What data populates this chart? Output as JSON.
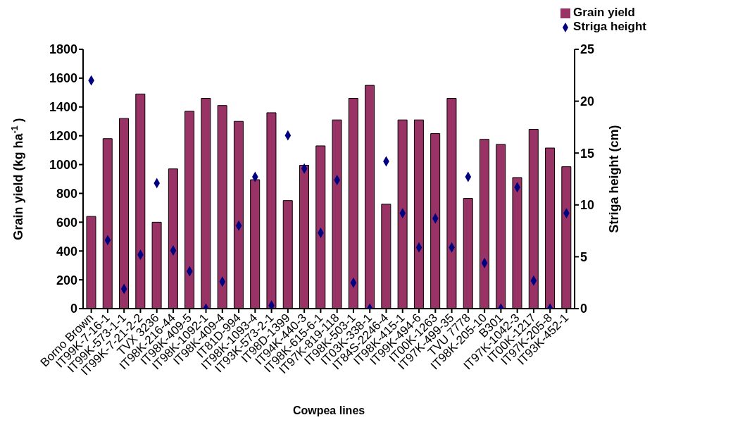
{
  "chart_data": {
    "type": "bar",
    "xlabel": "Cowpea lines",
    "ylabel": "Grain yield (kg ha$^{-1}$)",
    "y2label": "Striga height (cm)",
    "categories": [
      "Borno Brown",
      "IT99K-7-16-1",
      "IT99K-573-1-1",
      "IT99K-7-21-2-2",
      "TVX 3236",
      "IT98K-216-44",
      "IT98K-409-5",
      "IT98K-1092-1",
      "IT98K-409-4",
      "IT81D-994",
      "IT98K-1093-4",
      "IT93K-573-2-1",
      "IT98D-1399",
      "IT94K-440-3",
      "IT98K-615-6-1",
      "IT97K-819-118",
      "IT98K-503-1",
      "IT03K-338-1",
      "IT84S-2246-4",
      "IT98K-415-1",
      "IT99K-494-6",
      "IT00K-1263",
      "IT97K-499-35",
      "TVU 7778",
      "IT98K-205-10",
      "B301",
      "IT97K-1042-3",
      "IT00K-1217",
      "IT97K-205-8",
      "IT93K-452-1"
    ],
    "series": [
      {
        "name": "Grain yield",
        "color": "#993366",
        "values": [
          640,
          1180,
          1320,
          1490,
          600,
          970,
          1370,
          1460,
          1410,
          1300,
          895,
          1360,
          750,
          995,
          1130,
          1310,
          1460,
          1550,
          725,
          1310,
          1310,
          1215,
          1460,
          765,
          1175,
          1140,
          910,
          1245,
          1115,
          985
        ]
      },
      {
        "name": "Striga height",
        "type": "scatter",
        "axis": "y2",
        "color": "#000080",
        "marker": "diamond",
        "values": [
          22,
          6.6,
          1.9,
          5.2,
          12.1,
          5.6,
          3.6,
          0,
          2.6,
          8,
          12.7,
          0.3,
          16.7,
          13.5,
          7.3,
          12.4,
          2.5,
          0,
          14.2,
          9.2,
          5.9,
          8.7,
          5.9,
          12.7,
          4.4,
          0,
          11.7,
          2.7,
          0,
          9.2
        ]
      }
    ],
    "ylim": [
      0,
      1800
    ],
    "yticks": [
      0,
      200,
      400,
      600,
      800,
      1000,
      1200,
      1400,
      1600,
      1800
    ],
    "y2lim": [
      0,
      25
    ],
    "y2ticks": [
      0,
      5,
      10,
      15,
      20,
      25
    ],
    "grid": false,
    "legend": "top right"
  }
}
